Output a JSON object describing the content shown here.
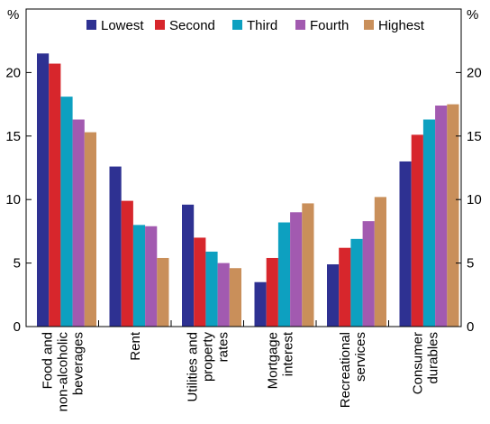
{
  "chart_data": {
    "type": "bar",
    "title": "",
    "xlabel": "",
    "ylabel": "%",
    "ylabel_right": "%",
    "ylim": [
      0,
      25
    ],
    "yticks": [
      0,
      5,
      10,
      15,
      20
    ],
    "grid": false,
    "legend_position": "top",
    "categories": [
      [
        "Food and",
        "non-alcoholic",
        "beverages"
      ],
      [
        "Rent"
      ],
      [
        "Utilities and",
        "property",
        "rates"
      ],
      [
        "Mortgage",
        "interest"
      ],
      [
        "Recreational",
        "services"
      ],
      [
        "Consumer",
        "durables"
      ]
    ],
    "series": [
      {
        "name": "Lowest",
        "color": "#2e3192",
        "values": [
          21.5,
          12.6,
          9.6,
          3.5,
          4.9,
          13.0
        ]
      },
      {
        "name": "Second",
        "color": "#d7262c",
        "values": [
          20.7,
          9.9,
          7.0,
          5.4,
          6.2,
          15.1
        ]
      },
      {
        "name": "Third",
        "color": "#0da0c0",
        "values": [
          18.1,
          8.0,
          5.9,
          8.2,
          6.9,
          16.3
        ]
      },
      {
        "name": "Fourth",
        "color": "#a25ab0",
        "values": [
          16.3,
          7.9,
          5.0,
          9.0,
          8.3,
          17.4
        ]
      },
      {
        "name": "Highest",
        "color": "#c98f5a",
        "values": [
          15.3,
          5.4,
          4.6,
          9.7,
          10.2,
          17.5
        ]
      }
    ]
  }
}
